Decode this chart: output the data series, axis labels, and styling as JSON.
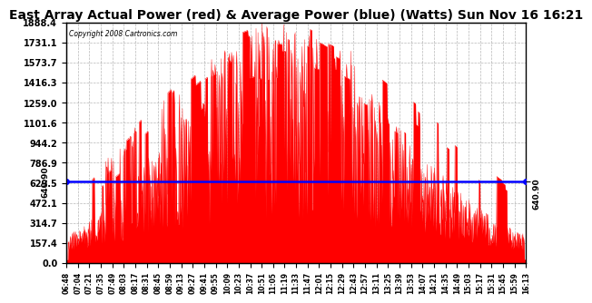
{
  "title": "East Array Actual Power (red) & Average Power (blue) (Watts) Sun Nov 16 16:21",
  "copyright": "Copyright 2008 Cartronics.com",
  "avg_power": 640.9,
  "ymax": 1888.4,
  "ymin": 0.0,
  "yticks": [
    0.0,
    157.4,
    314.7,
    472.1,
    629.5,
    786.9,
    944.2,
    1101.6,
    1259.0,
    1416.3,
    1573.7,
    1731.1,
    1888.4
  ],
  "bar_color": "#FF0000",
  "line_color": "#0000FF",
  "bg_color": "#FFFFFF",
  "grid_color": "#888888",
  "title_fontsize": 10,
  "xtick_labels": [
    "06:48",
    "07:04",
    "07:21",
    "07:35",
    "07:49",
    "08:03",
    "08:17",
    "08:31",
    "08:45",
    "08:59",
    "09:13",
    "09:27",
    "09:41",
    "09:55",
    "10:09",
    "10:23",
    "10:37",
    "10:51",
    "11:05",
    "11:19",
    "11:33",
    "11:47",
    "12:01",
    "12:15",
    "12:29",
    "12:43",
    "12:57",
    "13:11",
    "13:25",
    "13:39",
    "13:53",
    "14:07",
    "14:21",
    "14:35",
    "14:49",
    "15:03",
    "15:17",
    "15:31",
    "15:45",
    "15:59",
    "16:13"
  ]
}
